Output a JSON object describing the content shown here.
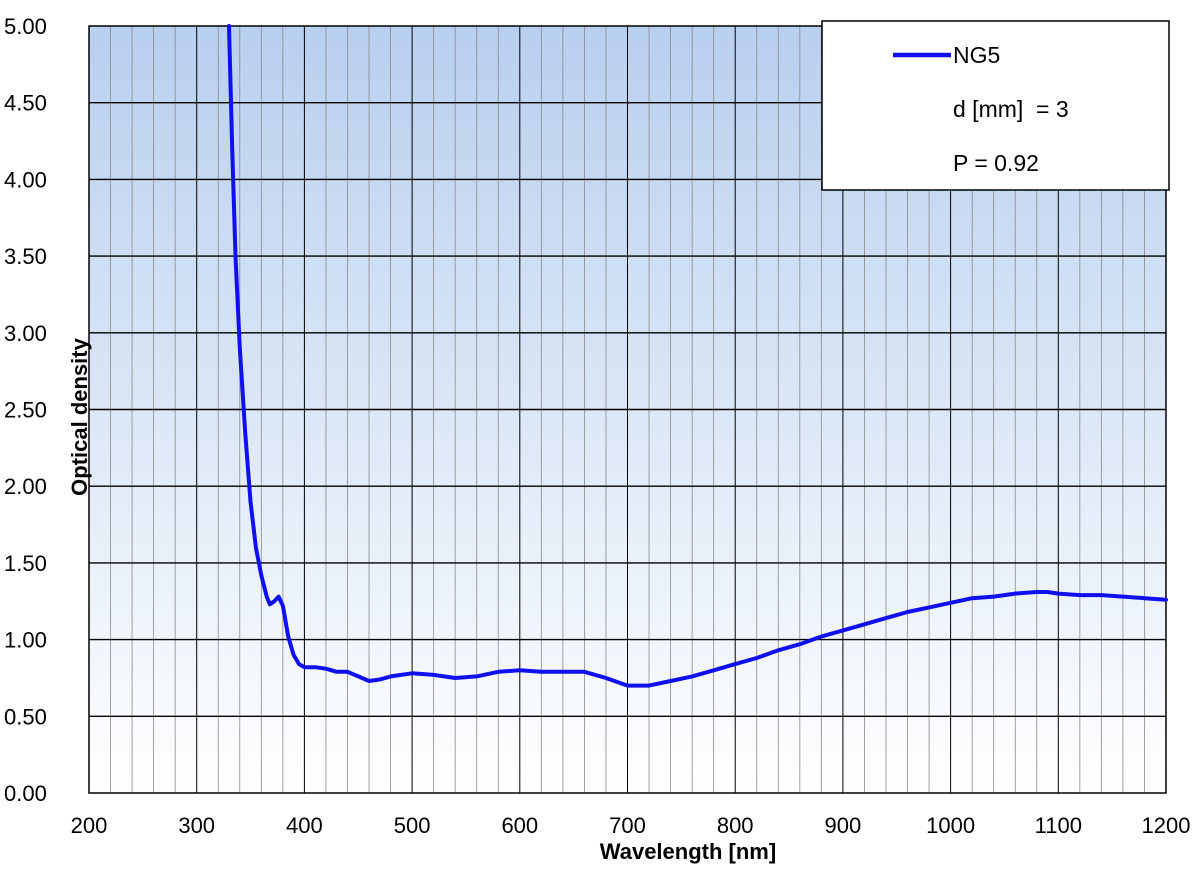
{
  "chart_data": {
    "type": "line",
    "title": "",
    "xlabel": "Wavelength [nm]",
    "ylabel": "Optical density",
    "xlim": [
      200,
      1200
    ],
    "ylim": [
      0,
      5
    ],
    "x_ticks": [
      "200",
      "300",
      "400",
      "500",
      "600",
      "700",
      "800",
      "900",
      "1000",
      "1100",
      "1200"
    ],
    "y_ticks": [
      "0.00",
      "0.50",
      "1.00",
      "1.50",
      "2.00",
      "2.50",
      "3.00",
      "3.50",
      "4.00",
      "4.50",
      "5.00"
    ],
    "grid": true,
    "legend_position": "top-right",
    "series": [
      {
        "name": "NG5",
        "color": "#1010ee",
        "x": [
          330,
          333,
          336,
          340,
          345,
          350,
          355,
          360,
          365,
          368,
          372,
          376,
          380,
          385,
          390,
          395,
          400,
          410,
          420,
          430,
          440,
          450,
          460,
          470,
          480,
          500,
          520,
          540,
          560,
          580,
          600,
          620,
          640,
          660,
          680,
          700,
          720,
          740,
          760,
          780,
          800,
          820,
          840,
          860,
          880,
          900,
          920,
          940,
          960,
          980,
          1000,
          1020,
          1040,
          1060,
          1080,
          1090,
          1100,
          1120,
          1140,
          1160,
          1180,
          1200
        ],
        "y": [
          5.0,
          4.2,
          3.5,
          2.9,
          2.35,
          1.9,
          1.6,
          1.42,
          1.28,
          1.23,
          1.25,
          1.28,
          1.22,
          1.02,
          0.9,
          0.84,
          0.82,
          0.82,
          0.81,
          0.79,
          0.79,
          0.76,
          0.73,
          0.74,
          0.76,
          0.78,
          0.77,
          0.75,
          0.76,
          0.79,
          0.8,
          0.79,
          0.79,
          0.79,
          0.75,
          0.7,
          0.7,
          0.73,
          0.76,
          0.8,
          0.84,
          0.88,
          0.93,
          0.97,
          1.02,
          1.06,
          1.1,
          1.14,
          1.18,
          1.21,
          1.24,
          1.27,
          1.28,
          1.3,
          1.31,
          1.31,
          1.3,
          1.29,
          1.29,
          1.28,
          1.27,
          1.26
        ]
      }
    ],
    "legend": {
      "series_label": "NG5",
      "thickness_text": "d [mm]  = 3",
      "p_text": "P = 0.92"
    },
    "background_gradient": [
      "#b8cfee",
      "#ffffff"
    ],
    "gridline_color": "#000000"
  }
}
